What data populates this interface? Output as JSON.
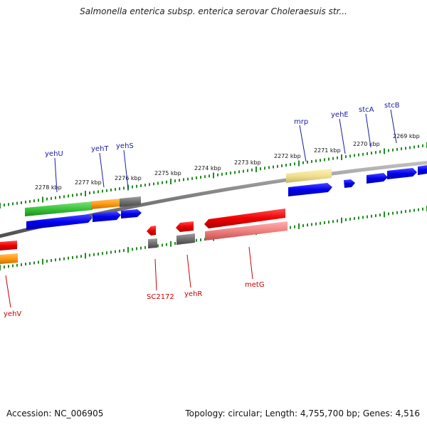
{
  "title": "Salmonella enterica subsp. enterica serovar Choleraesuis str...",
  "footer": {
    "accession": "Accession: NC_006905",
    "summary": "Topology: circular; Length: 4,755,700 bp; Genes: 4,516"
  },
  "colors": {
    "forward_gene": "#0000ee",
    "reverse_gene": "#ee0000",
    "forward_label": "#1a1aa8",
    "reverse_label": "#c80000",
    "ticks": "#228b22",
    "backbone": "#808080"
  },
  "scale_labels": [
    "2278 kbp",
    "2277 kbp",
    "2276 kbp",
    "2275 kbp",
    "2274 kbp",
    "2273 kbp",
    "2272 kbp",
    "2271 kbp",
    "2270 kbp",
    "2269 kbp"
  ],
  "forward_genes": [
    "yehU",
    "yehT",
    "yehS",
    "mrp",
    "yehE",
    "stcA",
    "stcB"
  ],
  "reverse_genes": [
    "yehV",
    "SC2172",
    "yehR",
    "metG"
  ]
}
